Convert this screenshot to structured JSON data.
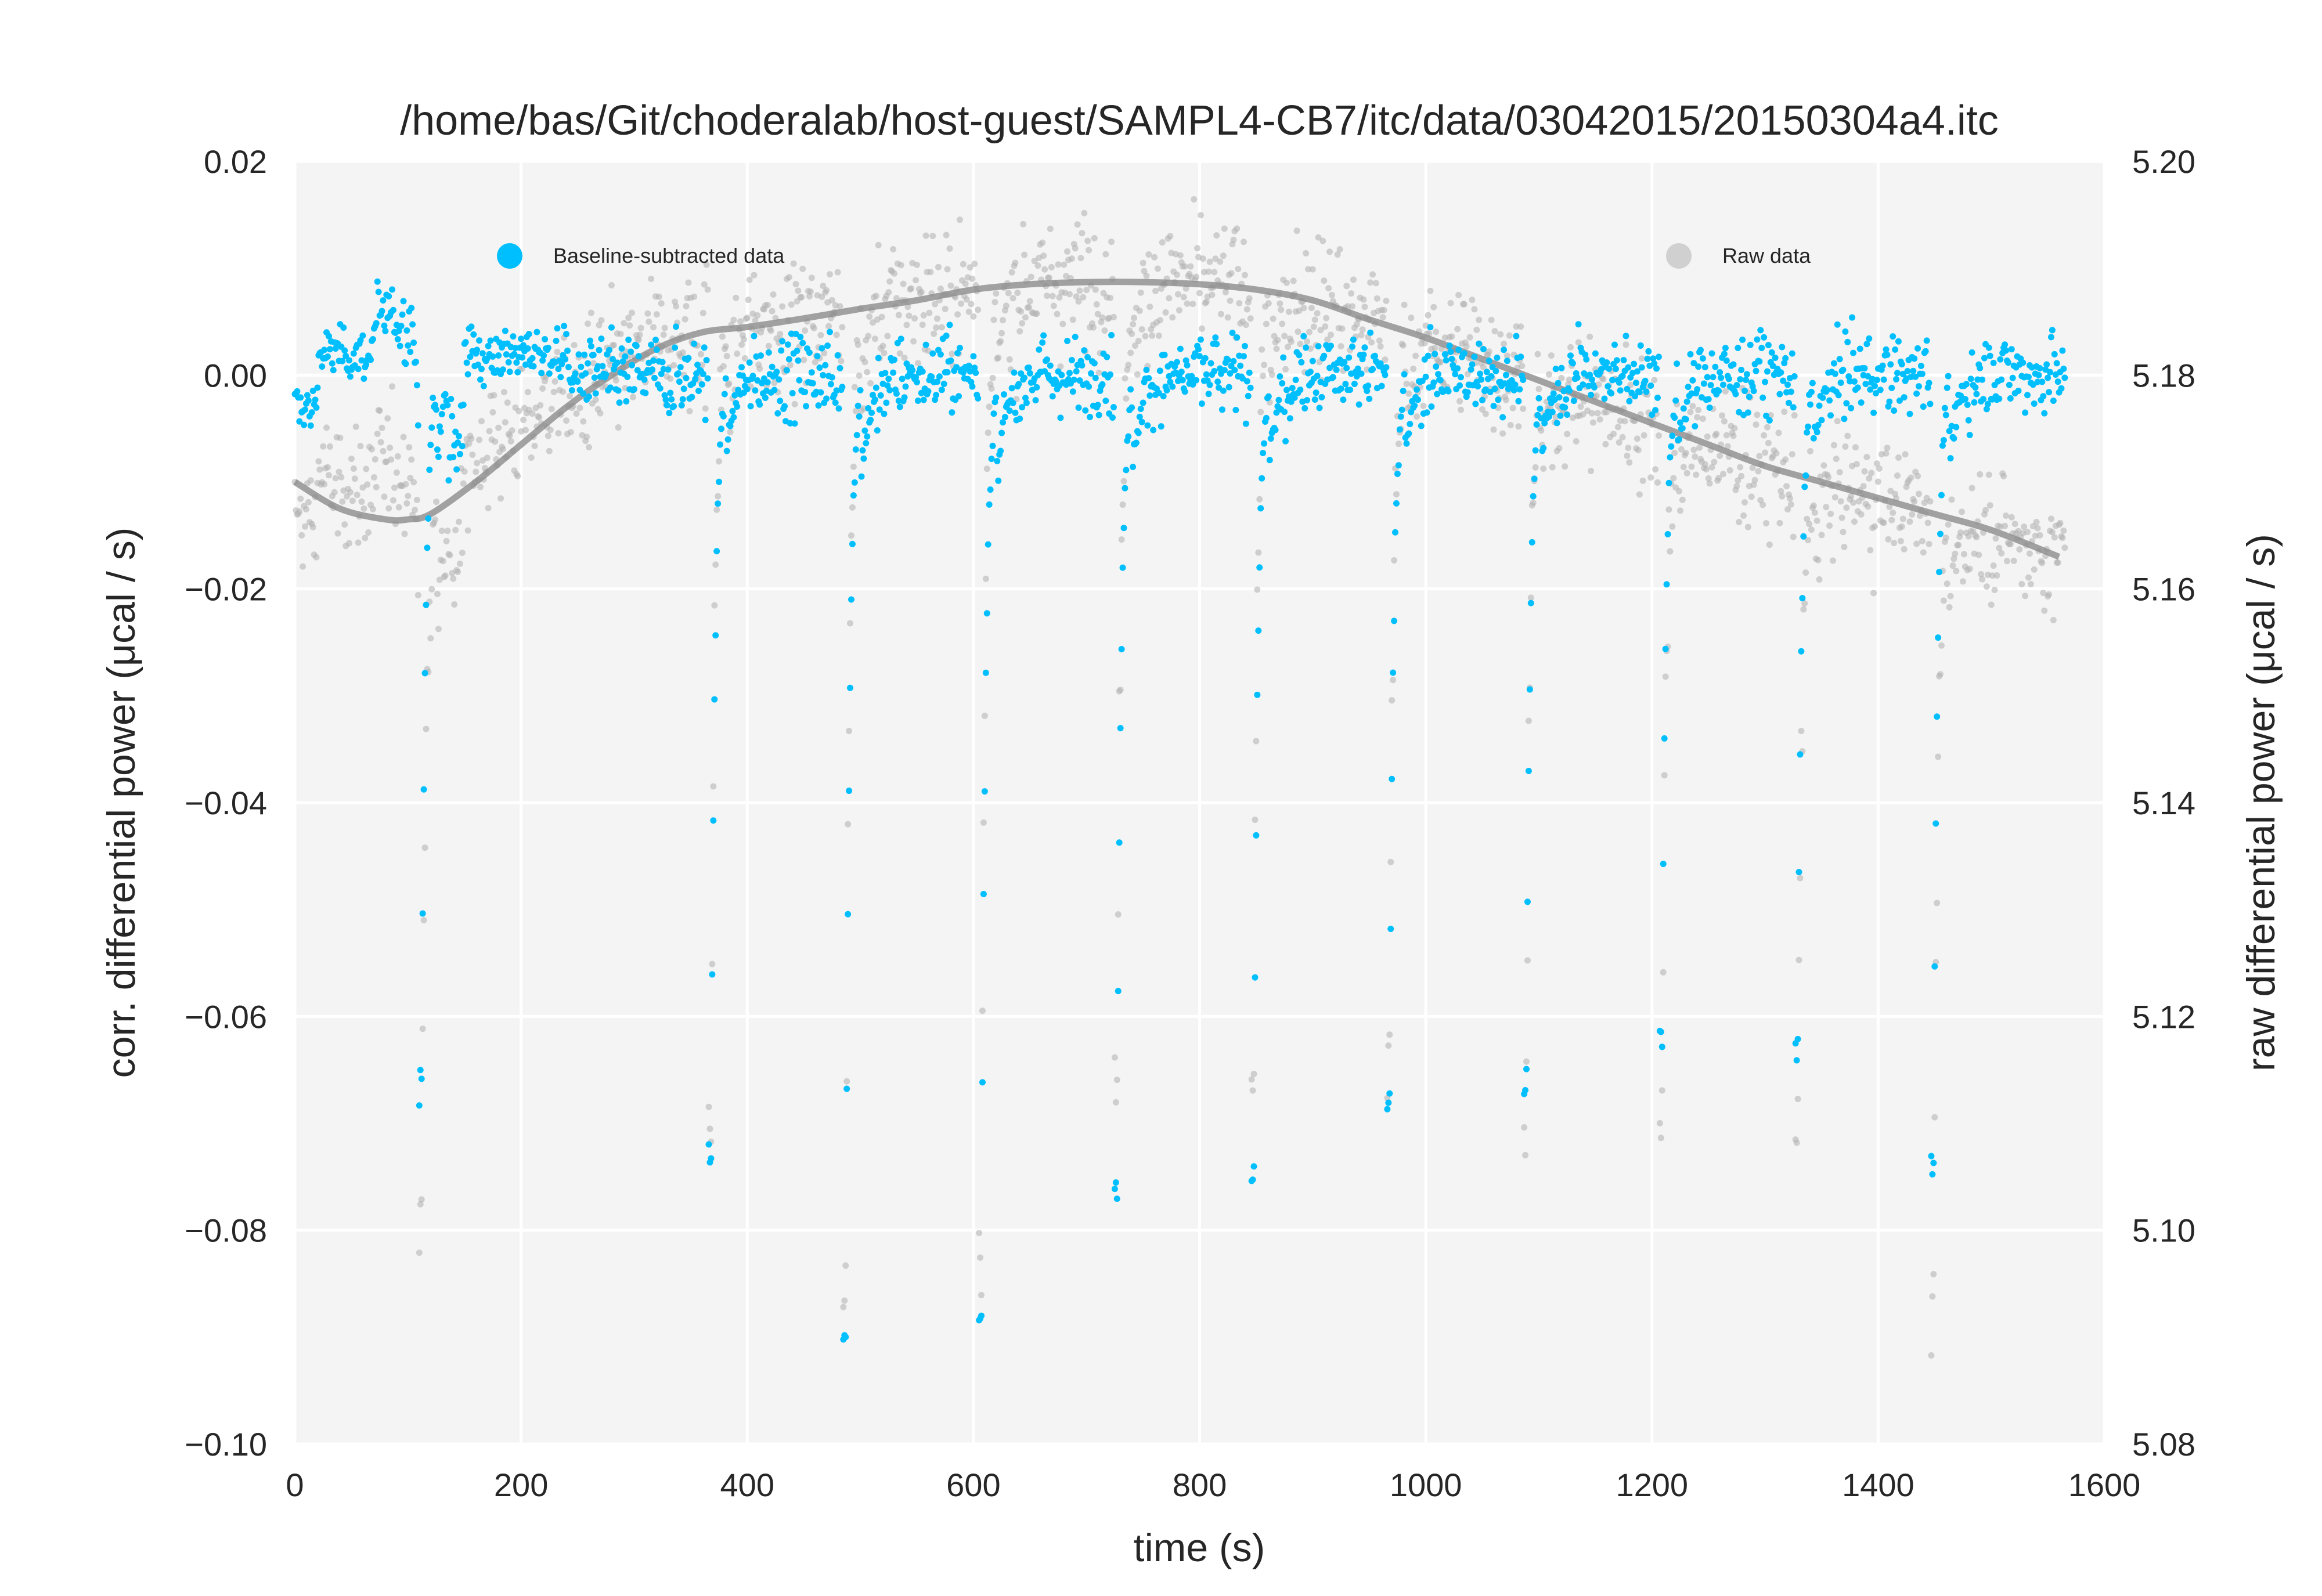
{
  "chart_data": {
    "type": "scatter",
    "title": "/home/bas/Git/choderalab/host-guest/SAMPL4-CB7/itc/data/03042015/20150304a4.itc",
    "xlabel": "time (s)",
    "ylabel_left": "corr. differential power (μcal / s)",
    "ylabel_right": "raw differential power (μcal / s)",
    "xlim": [
      0,
      1600
    ],
    "ylim_left": [
      -0.1,
      0.02
    ],
    "ylim_right": [
      5.08,
      5.2
    ],
    "x_ticks": [
      "0",
      "200",
      "400",
      "600",
      "800",
      "1000",
      "1200",
      "1400",
      "1600"
    ],
    "y_ticks_left": [
      "0.02",
      "0.00",
      "−0.02",
      "−0.04",
      "−0.06",
      "−0.08",
      "−0.10"
    ],
    "y_ticks_right": [
      "5.20",
      "5.18",
      "5.16",
      "5.14",
      "5.12",
      "5.10",
      "5.08"
    ],
    "grid": true,
    "legend": [
      {
        "name": "Baseline-subtracted data",
        "color": "#00bfff",
        "placement": "upper-left"
      },
      {
        "name": "Raw data",
        "color": "#c8c8c8",
        "placement": "upper-right"
      }
    ],
    "colors": {
      "corrected": "#00bfff",
      "raw": "#b4b4b4",
      "baseline": "#8c8c8c",
      "background": "#f4f4f4",
      "grid": "#ffffff"
    },
    "baseline_curve": {
      "axis": "right",
      "x": [
        0,
        40,
        80,
        100,
        120,
        160,
        200,
        240,
        280,
        320,
        360,
        400,
        450,
        500,
        550,
        600,
        650,
        700,
        750,
        800,
        850,
        900,
        950,
        1000,
        1050,
        1100,
        1150,
        1200,
        1250,
        1300,
        1350,
        1400,
        1450,
        1500,
        1560
      ],
      "y": [
        5.17,
        5.1675,
        5.1665,
        5.1665,
        5.167,
        5.17,
        5.1735,
        5.177,
        5.18,
        5.1825,
        5.184,
        5.1845,
        5.1853,
        5.1862,
        5.187,
        5.188,
        5.1885,
        5.1887,
        5.1887,
        5.1885,
        5.188,
        5.187,
        5.1852,
        5.1835,
        5.1815,
        5.1795,
        5.1775,
        5.1755,
        5.1735,
        5.1715,
        5.17,
        5.1685,
        5.167,
        5.1655,
        5.163
      ]
    },
    "corrected_scatter": {
      "axis": "left",
      "x_range": [
        0,
        1565
      ],
      "regions": [
        {
          "x": [
            0,
            20
          ],
          "level": -0.003,
          "spread": 0.002
        },
        {
          "x": [
            20,
            70
          ],
          "level": 0.002,
          "spread": 0.002
        },
        {
          "x": [
            70,
            105
          ],
          "level": 0.005,
          "spread": 0.003
        },
        {
          "x": [
            125,
            150
          ],
          "level": -0.004,
          "spread": 0.005
        },
        {
          "x": [
            150,
            240
          ],
          "level": 0.002,
          "spread": 0.002
        },
        {
          "x": [
            240,
            1565
          ],
          "level": 0.0,
          "spread": 0.003
        }
      ]
    },
    "injections": [
      {
        "time": 112,
        "min": -0.067
      },
      {
        "time": 368,
        "min": -0.073
      },
      {
        "time": 487,
        "min": -0.09
      },
      {
        "time": 607,
        "min": -0.088
      },
      {
        "time": 727,
        "min": -0.076
      },
      {
        "time": 848,
        "min": -0.074
      },
      {
        "time": 968,
        "min": -0.068
      },
      {
        "time": 1089,
        "min": -0.066
      },
      {
        "time": 1209,
        "min": -0.062
      },
      {
        "time": 1329,
        "min": -0.063
      },
      {
        "time": 1449,
        "min": -0.074
      }
    ]
  }
}
